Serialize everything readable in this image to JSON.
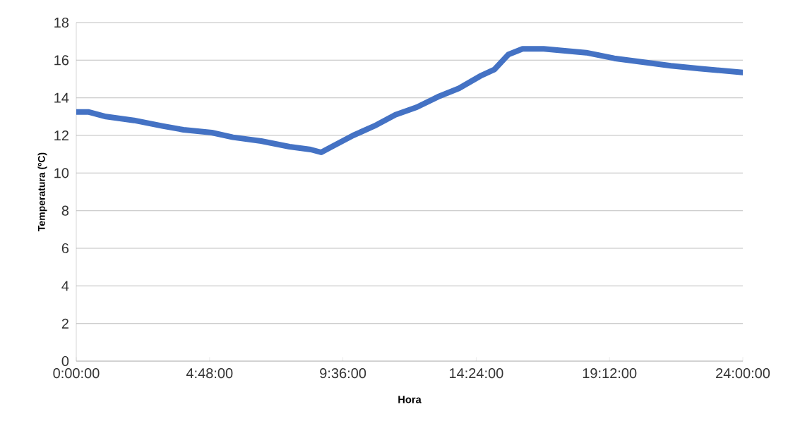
{
  "chart_data": {
    "type": "line",
    "xlabel": "Hora",
    "ylabel": "Temperatura (ºC)",
    "x": [
      0,
      0.43,
      1.07,
      2.08,
      3.1,
      3.86,
      4.88,
      5.64,
      6.66,
      7.68,
      8.44,
      8.82,
      9.2,
      9.97,
      10.73,
      11.49,
      12.26,
      13.02,
      13.78,
      14.54,
      15.05,
      15.56,
      16.07,
      16.83,
      17.59,
      18.36,
      19.37,
      20.39,
      21.41,
      22.43,
      24
    ],
    "values": [
      13.25,
      13.25,
      13.0,
      12.8,
      12.5,
      12.3,
      12.15,
      11.9,
      11.7,
      11.4,
      11.25,
      11.1,
      11.4,
      12.0,
      12.5,
      13.1,
      13.5,
      14.05,
      14.5,
      15.15,
      15.5,
      16.3,
      16.6,
      16.6,
      16.5,
      16.4,
      16.1,
      15.9,
      15.7,
      15.55,
      15.35
    ],
    "color": "#4472c4",
    "xlim": [
      0,
      24
    ],
    "ylim": [
      0,
      18
    ],
    "xticks": [
      {
        "value": 0,
        "label": "0:00:00"
      },
      {
        "value": 4.8,
        "label": "4:48:00"
      },
      {
        "value": 9.6,
        "label": "9:36:00"
      },
      {
        "value": 14.4,
        "label": "14:24:00"
      },
      {
        "value": 19.2,
        "label": "19:12:00"
      },
      {
        "value": 24,
        "label": "24:00:00"
      }
    ],
    "yticks": [
      0,
      2,
      4,
      6,
      8,
      10,
      12,
      14,
      16,
      18
    ],
    "grid": "y",
    "marker": "none",
    "line_style": "solid"
  }
}
